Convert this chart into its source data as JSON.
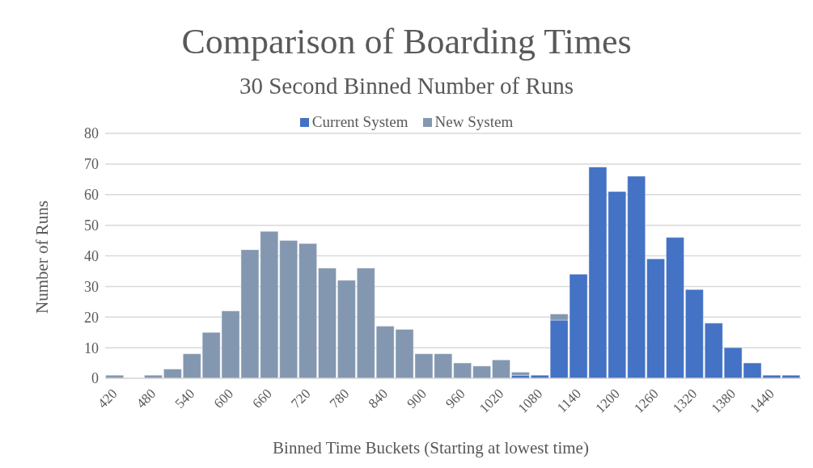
{
  "chart_data": {
    "type": "bar",
    "title": "Comparison of Boarding Times",
    "subtitle": "30 Second Binned Number of Runs",
    "xlabel": "Binned Time Buckets (Starting at lowest time)",
    "ylabel": "Number of Runs",
    "categories": [
      "420",
      null,
      "480",
      null,
      "540",
      null,
      "600",
      null,
      "660",
      null,
      "720",
      null,
      "780",
      null,
      "840",
      null,
      "900",
      null,
      "960",
      null,
      "1020",
      null,
      "1080",
      null,
      "1140",
      null,
      "1200",
      null,
      "1260",
      null,
      "1320",
      null,
      "1380",
      null,
      "1440",
      null
    ],
    "series": [
      {
        "name": "Current System",
        "color": "#4472c4",
        "values": [
          0,
          0,
          0,
          0,
          0,
          0,
          0,
          0,
          0,
          0,
          0,
          0,
          0,
          0,
          0,
          0,
          0,
          0,
          0,
          0,
          0,
          1,
          1,
          19,
          34,
          69,
          61,
          66,
          39,
          46,
          29,
          18,
          10,
          5,
          1,
          1
        ]
      },
      {
        "name": "New System",
        "color": "#8497b0",
        "values": [
          1,
          0,
          1,
          3,
          8,
          15,
          22,
          42,
          48,
          45,
          44,
          36,
          32,
          36,
          17,
          16,
          8,
          8,
          5,
          4,
          6,
          1,
          0,
          2,
          0,
          0,
          0,
          0,
          0,
          0,
          0,
          0,
          0,
          0,
          0,
          0
        ]
      }
    ],
    "stacked": true,
    "ylim": [
      0,
      80
    ],
    "yticks": [
      0,
      10,
      20,
      30,
      40,
      50,
      60,
      70,
      80
    ],
    "grid": "y",
    "legend": "top"
  }
}
